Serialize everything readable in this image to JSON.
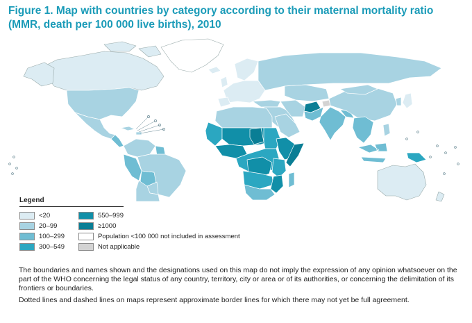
{
  "figure": {
    "title_line1": "Figure 1. Map with countries by category according to their maternal mortality ratio",
    "title_line2": "(MMR, death per 100 000 live births), 2010"
  },
  "colors": {
    "lt20": "#dcecf3",
    "c20_99": "#a8d3e2",
    "c100_299": "#6fbdd3",
    "c300_549": "#2ba7c1",
    "c550_999": "#118fa8",
    "ge1000": "#0a7e95",
    "not_included": "#ffffff",
    "not_applicable": "#d3d3d3",
    "border": "#ffffff",
    "title": "#1a9bb8"
  },
  "legend": {
    "title": "Legend",
    "items": [
      {
        "label": "<20",
        "color": "#dcecf3"
      },
      {
        "label": "20–99",
        "color": "#a8d3e2"
      },
      {
        "label": "100–299",
        "color": "#6fbdd3"
      },
      {
        "label": "300–549",
        "color": "#2ba7c1"
      },
      {
        "label": "550–999",
        "color": "#118fa8"
      },
      {
        "label": "≥1000",
        "color": "#0a7e95"
      },
      {
        "label": "Population <100 000 not included in assessment",
        "color": "#ffffff"
      },
      {
        "label": "Not applicable",
        "color": "#d3d3d3"
      }
    ]
  },
  "disclaimer": {
    "paragraph1": "The boundaries and names shown and the designations used on this map do not imply the expression of any opinion whatsoever on the part of the WHO concerning the legal status of any country, territory, city or area or of its authorities, or concerning the delimitation of its frontiers or boundaries.",
    "paragraph2": "Dotted lines and dashed lines on maps represent approximate border lines for which there may not yet be full agreement."
  }
}
